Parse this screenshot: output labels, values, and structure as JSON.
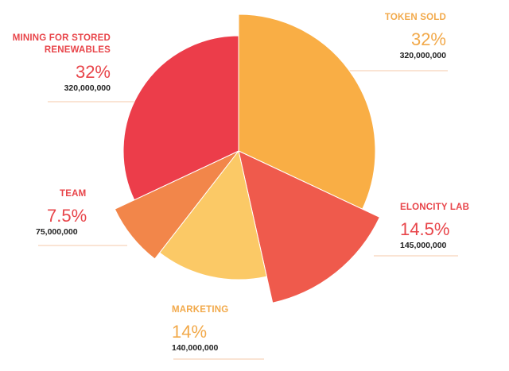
{
  "chart_data": {
    "type": "pie",
    "style": "exploded-radial",
    "slices": [
      {
        "label": "TOKEN SOLD",
        "percent": "32%",
        "amount": "320,000,000",
        "value": 32,
        "color": "#F9AE45",
        "label_color": "#F2A94A"
      },
      {
        "label": "ELONCITY LAB",
        "percent": "14.5%",
        "amount": "145,000,000",
        "value": 14.5,
        "color": "#EF5A4C",
        "label_color": "#E8454A"
      },
      {
        "label": "MARKETING",
        "percent": "14%",
        "amount": "140,000,000",
        "value": 14,
        "color": "#FBC966",
        "label_color": "#F2A94A"
      },
      {
        "label": "TEAM",
        "percent": "7.5%",
        "amount": "75,000,000",
        "value": 7.5,
        "color": "#F2864A",
        "label_color": "#E8454A"
      },
      {
        "label": "MINING FOR STORED RENEWABLES",
        "percent": "32%",
        "amount": "320,000,000",
        "value": 32,
        "color": "#EC3D4A",
        "label_color": "#E8454A"
      }
    ],
    "line_color": "#F6C9A8"
  }
}
